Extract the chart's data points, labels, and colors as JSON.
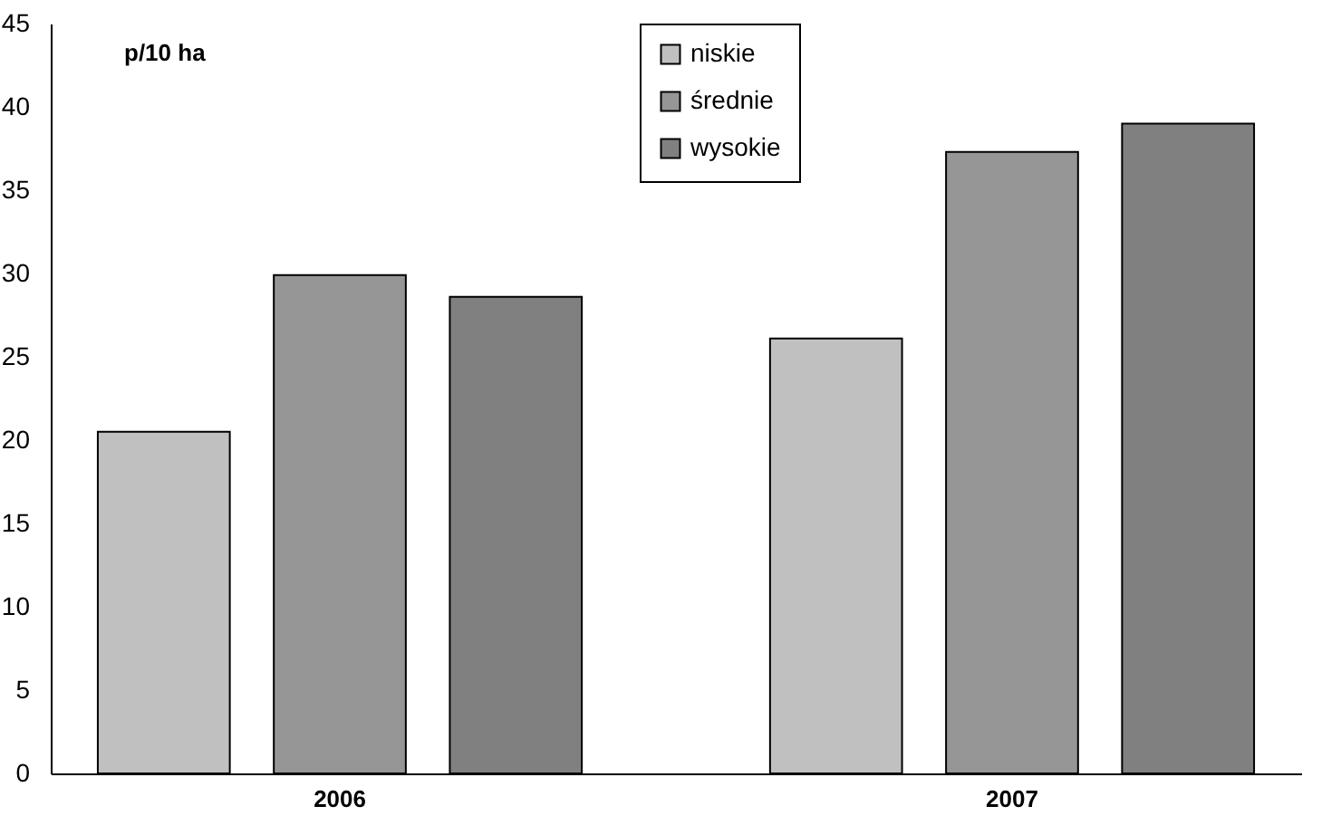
{
  "chart_data": {
    "type": "bar",
    "ylabel": "p/10 ha",
    "categories": [
      "2006",
      "2007"
    ],
    "series": [
      {
        "name": "niskie",
        "color": "#c0c0c0",
        "values": [
          20.5,
          26.1
        ]
      },
      {
        "name": "średnie",
        "color": "#969696",
        "values": [
          29.9,
          37.3
        ]
      },
      {
        "name": "wysokie",
        "color": "#808080",
        "values": [
          28.6,
          39.0
        ]
      }
    ],
    "ylim": [
      0,
      45
    ],
    "yticks": [
      0,
      5,
      10,
      15,
      20,
      25,
      30,
      35,
      40,
      45
    ],
    "grid": false,
    "legend": "top"
  }
}
